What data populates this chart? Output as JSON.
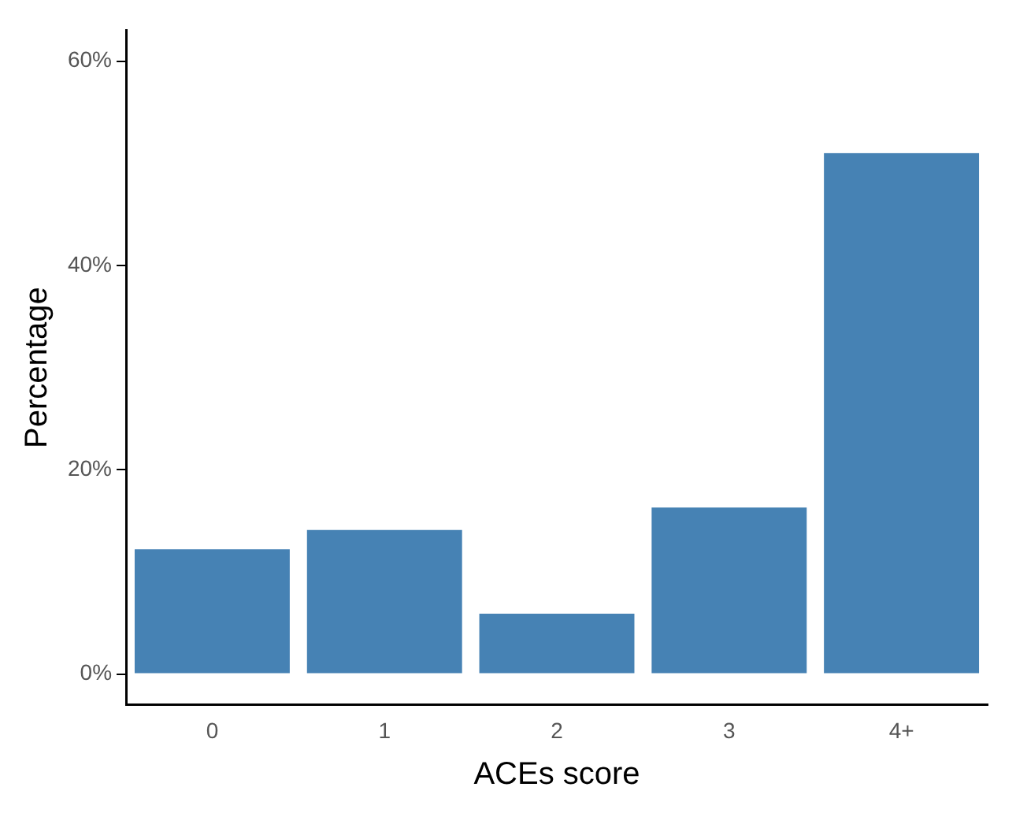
{
  "chart_data": {
    "type": "bar",
    "xlabel": "ACEs score",
    "ylabel": "Percentage",
    "categories": [
      "0",
      "1",
      "2",
      "3",
      "4+"
    ],
    "values": [
      12.2,
      14.1,
      5.9,
      16.3,
      51.0
    ],
    "color": "#4682b4",
    "ylim": [
      -3,
      63
    ],
    "yticks": [
      {
        "value": 0,
        "label": "0%"
      },
      {
        "value": 20,
        "label": "20%"
      },
      {
        "value": 40,
        "label": "40%"
      },
      {
        "value": 60,
        "label": "60%"
      }
    ],
    "grid": false,
    "legend": false
  }
}
